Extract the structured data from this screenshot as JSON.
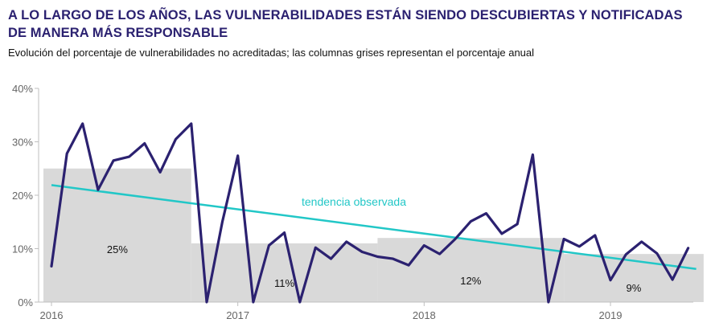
{
  "title": "A LO LARGO DE LOS AÑOS, LAS VULNERABILIDADES ESTÁN SIENDO DESCUBIERTAS Y NOTIFICADAS DE MANERA MÁS RESPONSABLE",
  "subtitle": "Evolución del porcentaje de vulnerabilidades no acreditadas; las columnas grises representan el porcentaje anual",
  "colors": {
    "line": "#2b2170",
    "trend": "#22c7c7",
    "bars": "#d9d9d9",
    "title": "#2b2170"
  },
  "chart_data": {
    "type": "line",
    "ylim": [
      0,
      40
    ],
    "yticks": [
      0,
      10,
      20,
      30,
      40
    ],
    "ytick_labels": [
      "0%",
      "10%",
      "20%",
      "30%",
      "40%"
    ],
    "xlim": [
      2016,
      2019.5
    ],
    "xticks": [
      2016,
      2017,
      2018,
      2019
    ],
    "xtick_labels": [
      "2016",
      "2017",
      "2018",
      "2019"
    ],
    "grid": false,
    "annual_bars": [
      {
        "start": 2016,
        "end": 2016.75,
        "value": 25,
        "label": "25%"
      },
      {
        "start": 2016.75,
        "end": 2017.75,
        "value": 11,
        "label": "11%"
      },
      {
        "start": 2017.75,
        "end": 2018.75,
        "value": 12,
        "label": "12%"
      },
      {
        "start": 2018.75,
        "end": 2019.5,
        "value": 9,
        "label": "9%"
      }
    ],
    "series": [
      {
        "values": [
          [
            2016.0,
            6.7
          ],
          [
            2016.083,
            27.8
          ],
          [
            2016.167,
            33.4
          ],
          [
            2016.25,
            21.0
          ],
          [
            2016.333,
            26.5
          ],
          [
            2016.417,
            27.2
          ],
          [
            2016.5,
            29.7
          ],
          [
            2016.583,
            24.3
          ],
          [
            2016.667,
            30.5
          ],
          [
            2016.75,
            33.4
          ],
          [
            2016.833,
            0.0
          ],
          [
            2016.917,
            15.0
          ],
          [
            2017.0,
            27.4
          ],
          [
            2017.083,
            0.0
          ],
          [
            2017.167,
            10.6
          ],
          [
            2017.25,
            13.0
          ],
          [
            2017.333,
            0.0
          ],
          [
            2017.417,
            10.2
          ],
          [
            2017.5,
            8.1
          ],
          [
            2017.583,
            11.3
          ],
          [
            2017.667,
            9.4
          ],
          [
            2017.75,
            8.5
          ],
          [
            2017.833,
            8.1
          ],
          [
            2017.917,
            6.9
          ],
          [
            2018.0,
            10.6
          ],
          [
            2018.083,
            9.0
          ],
          [
            2018.167,
            11.8
          ],
          [
            2018.25,
            15.1
          ],
          [
            2018.333,
            16.6
          ],
          [
            2018.417,
            12.8
          ],
          [
            2018.5,
            14.6
          ],
          [
            2018.583,
            27.6
          ],
          [
            2018.667,
            0.0
          ],
          [
            2018.75,
            11.8
          ],
          [
            2018.833,
            10.4
          ],
          [
            2018.917,
            12.5
          ],
          [
            2019.0,
            4.1
          ],
          [
            2019.083,
            8.9
          ],
          [
            2019.167,
            11.3
          ],
          [
            2019.25,
            9.1
          ],
          [
            2019.333,
            4.2
          ],
          [
            2019.417,
            10.1
          ]
        ]
      }
    ],
    "trend": {
      "label": "tendencia observada",
      "start": [
        2016.0,
        21.9
      ],
      "end": [
        2019.417,
        6.2
      ]
    }
  }
}
